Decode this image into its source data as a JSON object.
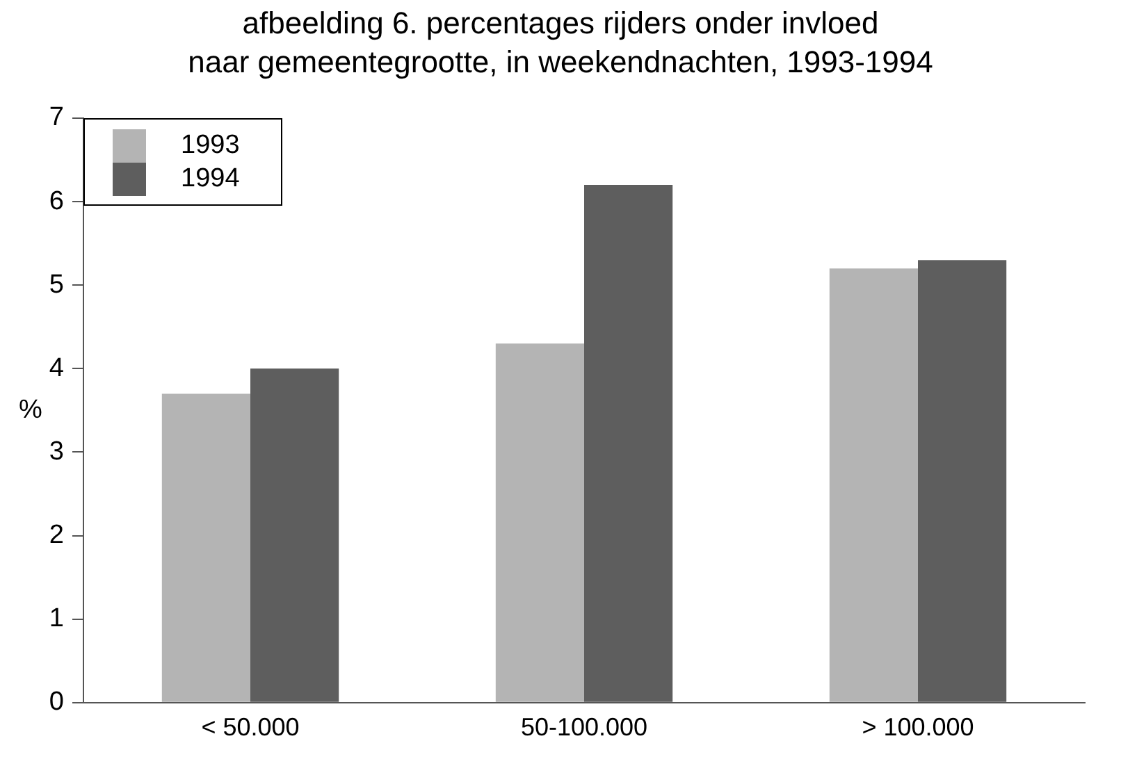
{
  "chart_data": {
    "type": "bar",
    "title": "afbeelding 6. percentages rijders onder invloed\nnaar gemeentegrootte, in weekendnachten, 1993-1994",
    "ylabel": "%",
    "categories": [
      "< 50.000",
      "50-100.000",
      "> 100.000"
    ],
    "series": [
      {
        "name": "1993",
        "color": "#b4b4b4",
        "values": [
          3.7,
          4.3,
          5.2
        ]
      },
      {
        "name": "1994",
        "color": "#5e5e5e",
        "values": [
          4.0,
          6.2,
          5.3
        ]
      }
    ],
    "ylim": [
      0,
      7
    ],
    "yticks": [
      0,
      1,
      2,
      3,
      4,
      5,
      6,
      7
    ],
    "grid": false,
    "legend": "top left"
  }
}
